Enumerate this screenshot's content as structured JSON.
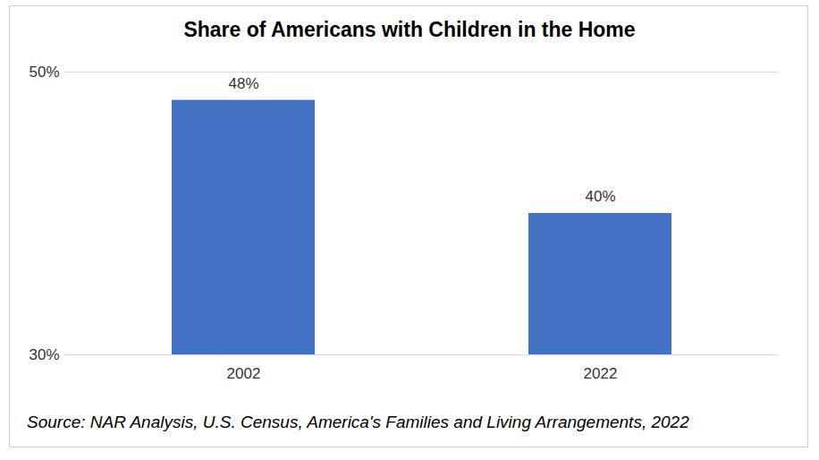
{
  "chart_data": {
    "type": "bar",
    "title": "Share of Americans with Children in the Home",
    "categories": [
      "2002",
      "2022"
    ],
    "values": [
      48,
      40
    ],
    "value_labels": [
      "48%",
      "40%"
    ],
    "color": "#4472c4",
    "ylim": [
      30,
      50
    ],
    "yticks": [
      {
        "value": 30,
        "label": "30%"
      },
      {
        "value": 50,
        "label": "50%"
      }
    ],
    "grid": true,
    "data_labels": true,
    "caption": "Source: NAR Analysis, U.S. Census, America's Families and Living Arrangements, 2022"
  }
}
